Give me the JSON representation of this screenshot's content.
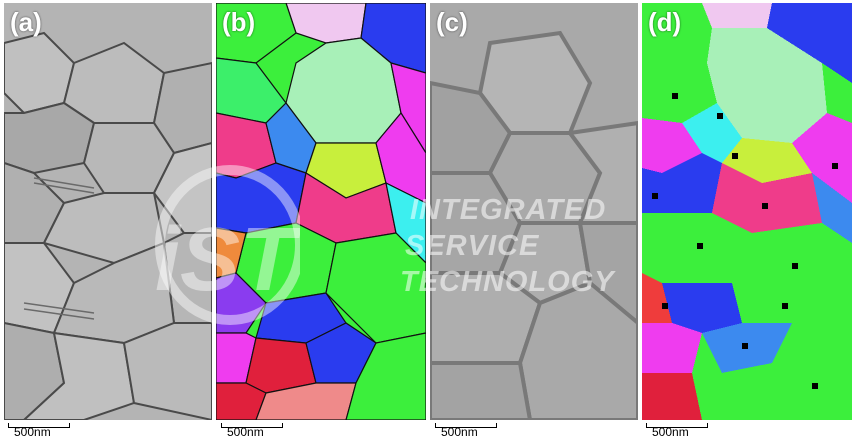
{
  "panels": [
    {
      "label": "(a)",
      "scale": "500nm"
    },
    {
      "label": "(b)",
      "scale": "500nm"
    },
    {
      "label": "(c)",
      "scale": "500nm"
    },
    {
      "label": "(d)",
      "scale": "500nm"
    }
  ],
  "watermark": {
    "line1": "INTEGRATED",
    "line2": "SERVICE",
    "line3": "TECHNOLOGY",
    "logo": "iST"
  },
  "colors": {
    "gray_bg": "#a9a9a9",
    "grain_green": "#3cef3c",
    "grain_lightgreen": "#a8f0b8",
    "grain_magenta": "#ef3cef",
    "grain_blue": "#2a3cef",
    "grain_red": "#e0203c"
  }
}
